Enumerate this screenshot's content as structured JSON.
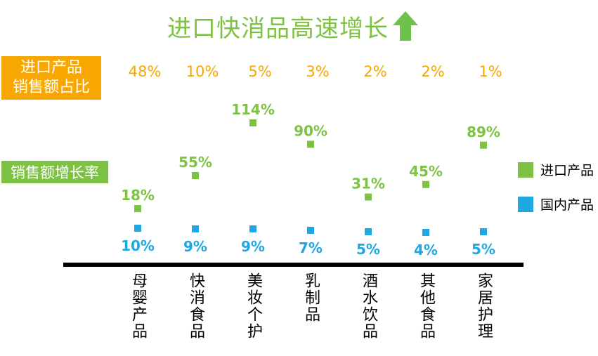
{
  "title": "进口快消品高速增长",
  "side_labels": {
    "share_line1": "进口产品",
    "share_line2": "销售额占比",
    "growth": "销售额增长率"
  },
  "colors": {
    "imported": "#7dc242",
    "domestic": "#1ea7e1",
    "share": "#f7a700",
    "title_arrow": "#6cc24a"
  },
  "chart_data": {
    "type": "scatter",
    "categories": [
      "母婴产品",
      "快消食品",
      "美妆个护",
      "乳制品",
      "酒水饮品",
      "其他食品",
      "家居护理"
    ],
    "share_of_imported_sales": [
      "48%",
      "10%",
      "5%",
      "3%",
      "2%",
      "2%",
      "1%"
    ],
    "series": [
      {
        "name": "进口产品",
        "values": [
          18,
          55,
          114,
          90,
          31,
          45,
          89
        ],
        "labels": [
          "18%",
          "55%",
          "114%",
          "90%",
          "31%",
          "45%",
          "89%"
        ]
      },
      {
        "name": "国内产品",
        "values": [
          10,
          9,
          9,
          7,
          5,
          4,
          5
        ],
        "labels": [
          "10%",
          "9%",
          "9%",
          "7%",
          "5%",
          "4%",
          "5%"
        ]
      }
    ],
    "legend_position": "right",
    "grid": false
  }
}
